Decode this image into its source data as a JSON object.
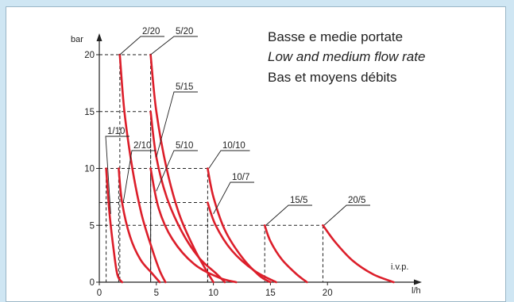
{
  "title_lines": [
    "Basse e medie portate",
    "Low and medium flow rate",
    "Bas et moyens débits"
  ],
  "colors": {
    "curve": "#dc1e2a",
    "background": "#cfe6f3"
  },
  "chart_data": {
    "type": "line",
    "ylabel": "bar",
    "xlabel": "l/h",
    "x_note": "i.v.p.",
    "ylim": [
      0,
      22
    ],
    "xlim": [
      0,
      27
    ],
    "x_ticks": [
      0,
      5,
      10,
      15,
      20
    ],
    "y_ticks": [
      0,
      5,
      10,
      15,
      20
    ],
    "grid": false,
    "series": [
      {
        "name": "1/10",
        "start_pressure": 10,
        "points": [
          [
            0.6,
            10
          ],
          [
            0.9,
            6
          ],
          [
            1.3,
            2.5
          ],
          [
            1.6,
            0.6
          ],
          [
            2.0,
            0
          ]
        ]
      },
      {
        "name": "2/20",
        "start_pressure": 20,
        "points": [
          [
            1.8,
            20
          ],
          [
            2.2,
            15
          ],
          [
            2.9,
            10
          ],
          [
            3.7,
            6
          ],
          [
            4.6,
            3
          ],
          [
            5.3,
            1
          ],
          [
            5.8,
            0
          ]
        ]
      },
      {
        "name": "2/10",
        "start_pressure": 10,
        "points": [
          [
            1.7,
            10
          ],
          [
            2.0,
            7
          ],
          [
            2.7,
            4
          ],
          [
            3.6,
            2
          ],
          [
            4.6,
            0.8
          ],
          [
            5.3,
            0
          ]
        ]
      },
      {
        "name": "5/20",
        "start_pressure": 20,
        "points": [
          [
            4.5,
            20
          ],
          [
            5.0,
            15
          ],
          [
            5.9,
            10
          ],
          [
            7.0,
            6
          ],
          [
            8.3,
            3
          ],
          [
            9.4,
            1
          ],
          [
            10.0,
            0
          ]
        ]
      },
      {
        "name": "5/15",
        "start_pressure": 15,
        "points": [
          [
            4.5,
            15
          ],
          [
            5.0,
            11
          ],
          [
            5.9,
            7.5
          ],
          [
            7.2,
            4.5
          ],
          [
            8.7,
            2.2
          ],
          [
            10.2,
            0.8
          ],
          [
            11.0,
            0
          ]
        ]
      },
      {
        "name": "5/10",
        "start_pressure": 10,
        "points": [
          [
            4.5,
            10
          ],
          [
            5.2,
            6.5
          ],
          [
            6.4,
            3.8
          ],
          [
            8.3,
            1.6
          ],
          [
            10.5,
            0.4
          ],
          [
            12.0,
            0
          ]
        ]
      },
      {
        "name": "10/10",
        "start_pressure": 10,
        "points": [
          [
            9.5,
            10
          ],
          [
            10.0,
            7.5
          ],
          [
            11.0,
            4.6
          ],
          [
            12.5,
            2.2
          ],
          [
            14.0,
            0.6
          ],
          [
            15.0,
            0
          ]
        ]
      },
      {
        "name": "10/7",
        "start_pressure": 7,
        "points": [
          [
            9.5,
            7
          ],
          [
            10.2,
            5
          ],
          [
            11.6,
            2.8
          ],
          [
            13.6,
            1.0
          ],
          [
            15.5,
            0
          ]
        ]
      },
      {
        "name": "15/5",
        "start_pressure": 5,
        "points": [
          [
            14.5,
            5
          ],
          [
            15.0,
            3.6
          ],
          [
            16.0,
            2.0
          ],
          [
            17.3,
            0.7
          ],
          [
            18.2,
            0
          ]
        ]
      },
      {
        "name": "20/5",
        "start_pressure": 5,
        "points": [
          [
            19.6,
            5
          ],
          [
            20.7,
            3.5
          ],
          [
            22.2,
            1.9
          ],
          [
            24.0,
            0.7
          ],
          [
            25.8,
            0
          ]
        ]
      }
    ]
  }
}
